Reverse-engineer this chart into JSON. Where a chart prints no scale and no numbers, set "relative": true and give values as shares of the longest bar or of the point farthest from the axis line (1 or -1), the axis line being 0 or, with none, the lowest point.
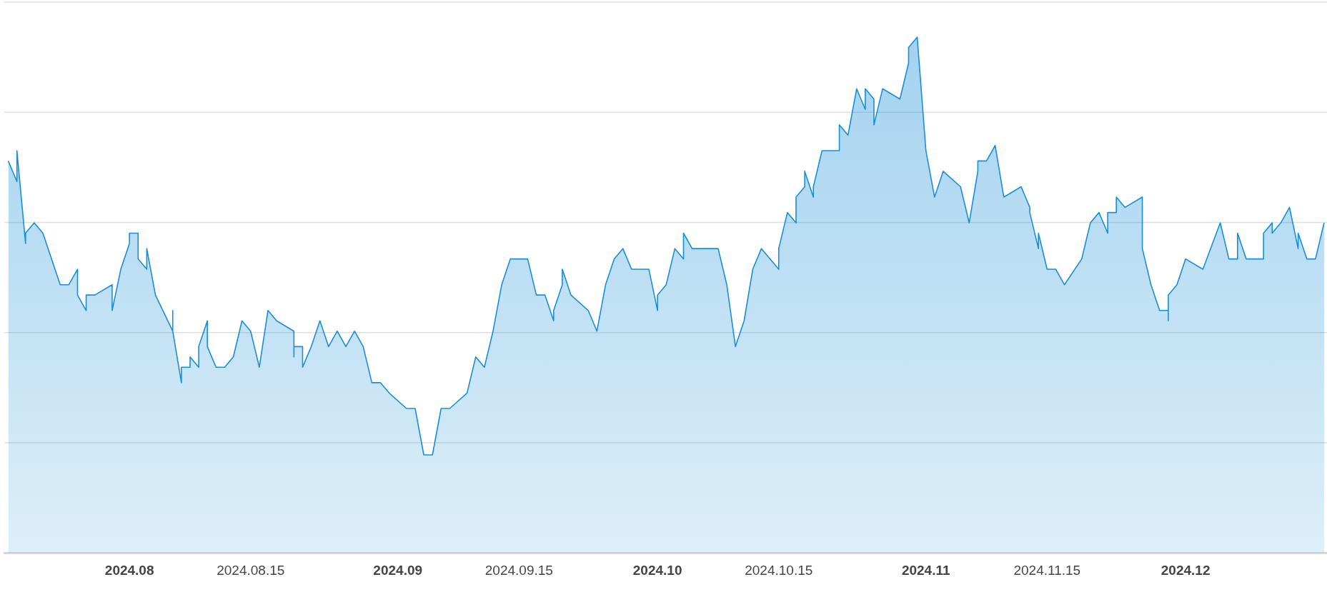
{
  "chart_data": {
    "type": "area",
    "relative": true,
    "grid": "y",
    "color": "#1a8fd6",
    "xlim": [
      "2024-07-17T13:00",
      "2024-12-17T08:00"
    ],
    "xticks": [
      {
        "value": "2024-08-01",
        "label": "2024.08"
      },
      {
        "value": "2024-08-15",
        "label": "2024.08.15"
      },
      {
        "value": "2024-09-01",
        "label": "2024.09"
      },
      {
        "value": "2024-09-15",
        "label": "2024.09.15"
      },
      {
        "value": "2024-10-01",
        "label": "2024.10"
      },
      {
        "value": "2024-10-15",
        "label": "2024.10.15"
      },
      {
        "value": "2024-11-01",
        "label": "2024.11"
      },
      {
        "value": "2024-11-15",
        "label": "2024.11.15"
      },
      {
        "value": "2024-12-01",
        "label": "2024.12"
      }
    ],
    "x": [
      "2024-07-18",
      "2024-07-19",
      "2024-07-19",
      "2024-07-20",
      "2024-07-20",
      "2024-07-21",
      "2024-07-22",
      "2024-07-24",
      "2024-07-25",
      "2024-07-26",
      "2024-07-26",
      "2024-07-27",
      "2024-07-27",
      "2024-07-28",
      "2024-07-30",
      "2024-07-30",
      "2024-07-31",
      "2024-08-01",
      "2024-08-01",
      "2024-08-02",
      "2024-08-02",
      "2024-08-03",
      "2024-08-03",
      "2024-08-04",
      "2024-08-06",
      "2024-08-06",
      "2024-08-06",
      "2024-08-07",
      "2024-08-07",
      "2024-08-08",
      "2024-08-08",
      "2024-08-09",
      "2024-08-09",
      "2024-08-10",
      "2024-08-10",
      "2024-08-11",
      "2024-08-12",
      "2024-08-13",
      "2024-08-14",
      "2024-08-15",
      "2024-08-16",
      "2024-08-17",
      "2024-08-18",
      "2024-08-20",
      "2024-08-20",
      "2024-08-20",
      "2024-08-21",
      "2024-08-21",
      "2024-08-22",
      "2024-08-23",
      "2024-08-24",
      "2024-08-25",
      "2024-08-26",
      "2024-08-27",
      "2024-08-28",
      "2024-08-29",
      "2024-08-30",
      "2024-08-31",
      "2024-09-02",
      "2024-09-03",
      "2024-09-04",
      "2024-09-05",
      "2024-09-06",
      "2024-09-07",
      "2024-09-09",
      "2024-09-10",
      "2024-09-11",
      "2024-09-12",
      "2024-09-13",
      "2024-09-14",
      "2024-09-16",
      "2024-09-17",
      "2024-09-18",
      "2024-09-19",
      "2024-09-19",
      "2024-09-20",
      "2024-09-20",
      "2024-09-21",
      "2024-09-23",
      "2024-09-24",
      "2024-09-25",
      "2024-09-26",
      "2024-09-27",
      "2024-09-28",
      "2024-09-30",
      "2024-10-01",
      "2024-10-01",
      "2024-10-02",
      "2024-10-03",
      "2024-10-04",
      "2024-10-04",
      "2024-10-05",
      "2024-10-08",
      "2024-10-09",
      "2024-10-10",
      "2024-10-11",
      "2024-10-12",
      "2024-10-13",
      "2024-10-15",
      "2024-10-15",
      "2024-10-16",
      "2024-10-17",
      "2024-10-17",
      "2024-10-18",
      "2024-10-18",
      "2024-10-19",
      "2024-10-19",
      "2024-10-20",
      "2024-10-22",
      "2024-10-22",
      "2024-10-23",
      "2024-10-24",
      "2024-10-25",
      "2024-10-25",
      "2024-10-26",
      "2024-10-26",
      "2024-10-27",
      "2024-10-29",
      "2024-10-30",
      "2024-10-30",
      "2024-10-31",
      "2024-11-01",
      "2024-11-02",
      "2024-11-03",
      "2024-11-05",
      "2024-11-06",
      "2024-11-07",
      "2024-11-07",
      "2024-11-08",
      "2024-11-09",
      "2024-11-10",
      "2024-11-12",
      "2024-11-13",
      "2024-11-13",
      "2024-11-14",
      "2024-11-14",
      "2024-11-15",
      "2024-11-16",
      "2024-11-17",
      "2024-11-19",
      "2024-11-20",
      "2024-11-21",
      "2024-11-22",
      "2024-11-22",
      "2024-11-23",
      "2024-11-23",
      "2024-11-24",
      "2024-11-26",
      "2024-11-26",
      "2024-11-27",
      "2024-11-28",
      "2024-11-29",
      "2024-11-29",
      "2024-11-29",
      "2024-11-30",
      "2024-12-01",
      "2024-12-03",
      "2024-12-05",
      "2024-12-06",
      "2024-12-07",
      "2024-12-07",
      "2024-12-08",
      "2024-12-10",
      "2024-12-10",
      "2024-12-11",
      "2024-12-11",
      "2024-12-12",
      "2024-12-13",
      "2024-12-14",
      "2024-12-14",
      "2024-12-15",
      "2024-12-16",
      "2024-12-17"
    ],
    "values": [
      0.76,
      0.72,
      0.78,
      0.6,
      0.62,
      0.64,
      0.62,
      0.52,
      0.52,
      0.55,
      0.5,
      0.47,
      0.5,
      0.5,
      0.52,
      0.47,
      0.55,
      0.6,
      0.62,
      0.62,
      0.57,
      0.55,
      0.59,
      0.5,
      0.43,
      0.47,
      0.43,
      0.33,
      0.36,
      0.36,
      0.38,
      0.36,
      0.4,
      0.45,
      0.4,
      0.36,
      0.36,
      0.38,
      0.45,
      0.43,
      0.36,
      0.47,
      0.45,
      0.43,
      0.38,
      0.4,
      0.4,
      0.36,
      0.4,
      0.45,
      0.4,
      0.43,
      0.4,
      0.43,
      0.4,
      0.33,
      0.33,
      0.31,
      0.28,
      0.28,
      0.19,
      0.19,
      0.28,
      0.28,
      0.31,
      0.38,
      0.36,
      0.43,
      0.52,
      0.57,
      0.57,
      0.5,
      0.5,
      0.45,
      0.47,
      0.52,
      0.55,
      0.5,
      0.47,
      0.43,
      0.52,
      0.57,
      0.59,
      0.55,
      0.55,
      0.47,
      0.5,
      0.52,
      0.59,
      0.57,
      0.62,
      0.59,
      0.59,
      0.52,
      0.4,
      0.45,
      0.55,
      0.59,
      0.55,
      0.59,
      0.66,
      0.64,
      0.69,
      0.71,
      0.74,
      0.69,
      0.71,
      0.78,
      0.78,
      0.83,
      0.81,
      0.9,
      0.86,
      0.9,
      0.88,
      0.83,
      0.9,
      0.88,
      0.95,
      0.98,
      1,
      0.78,
      0.69,
      0.74,
      0.71,
      0.64,
      0.74,
      0.76,
      0.76,
      0.79,
      0.69,
      0.71,
      0.67,
      0.66,
      0.59,
      0.62,
      0.55,
      0.55,
      0.52,
      0.57,
      0.64,
      0.66,
      0.62,
      0.66,
      0.66,
      0.69,
      0.67,
      0.69,
      0.59,
      0.52,
      0.47,
      0.47,
      0.45,
      0.5,
      0.52,
      0.57,
      0.55,
      0.64,
      0.57,
      0.57,
      0.62,
      0.57,
      0.57,
      0.62,
      0.64,
      0.62,
      0.64,
      0.67,
      0.59,
      0.62,
      0.57,
      0.57,
      0.64
    ]
  }
}
